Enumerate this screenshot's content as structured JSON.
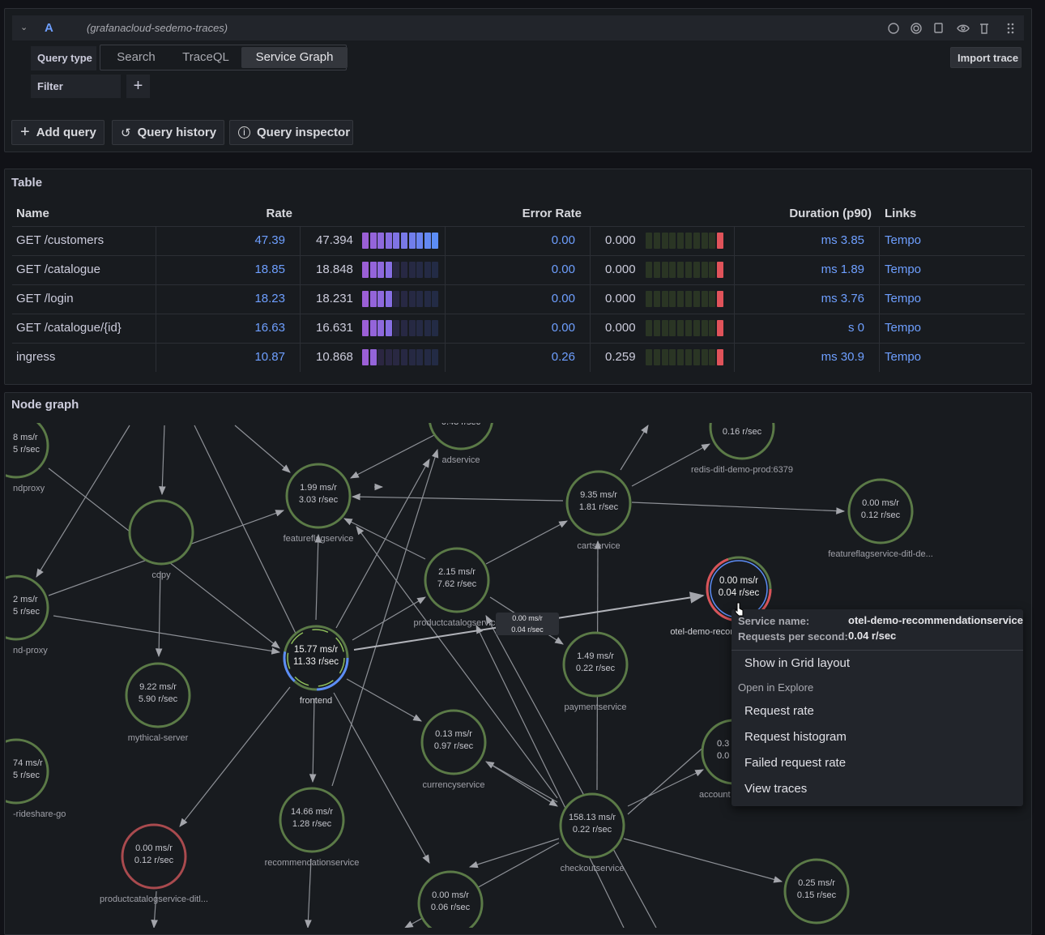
{
  "query_editor": {
    "query_letter": "A",
    "datasource": "(grafanacloud-sedemo-traces)",
    "query_type_label": "Query type",
    "tabs": [
      "Search",
      "TraceQL",
      "Service Graph"
    ],
    "active_tab": 2,
    "import_button": "Import trace",
    "filter_label": "Filter",
    "buttons": [
      "Add query",
      "Query history",
      "Query inspector"
    ]
  },
  "table": {
    "title": "Table",
    "columns": [
      "Name",
      "Rate",
      "Error Rate",
      "Duration (p90)",
      "Links"
    ],
    "rows": [
      {
        "name": "GET /customers",
        "rate": "47.39",
        "rate_gauge": "47.394",
        "error_rate": "0.00",
        "error_gauge": "0.000",
        "duration": "ms 3.85",
        "link": "Tempo"
      },
      {
        "name": "GET /catalogue",
        "rate": "18.85",
        "rate_gauge": "18.848",
        "error_rate": "0.00",
        "error_gauge": "0.000",
        "duration": "ms 1.89",
        "link": "Tempo"
      },
      {
        "name": "GET /login",
        "rate": "18.23",
        "rate_gauge": "18.231",
        "error_rate": "0.00",
        "error_gauge": "0.000",
        "duration": "ms 3.76",
        "link": "Tempo"
      },
      {
        "name": "GET /catalogue/{id}",
        "rate": "16.63",
        "rate_gauge": "16.631",
        "error_rate": "0.00",
        "error_gauge": "0.000",
        "duration": "s 0",
        "link": "Tempo"
      },
      {
        "name": "ingress",
        "rate": "10.87",
        "rate_gauge": "10.868",
        "error_rate": "0.26",
        "error_gauge": "0.259",
        "duration": "ms 30.9",
        "link": "Tempo"
      }
    ]
  },
  "node_graph": {
    "title": "Node graph",
    "nodes": [
      {
        "stats": [
          "1.99 ms/r",
          "3.03 r/sec"
        ],
        "label": "featureflagservice"
      },
      {
        "stats": [],
        "label": "copy"
      },
      {
        "stats": [
          "15.77 ms/r",
          "11.33 r/sec"
        ],
        "label": "frontend"
      },
      {
        "stats": [
          "2.15 ms/r",
          "7.62 r/sec"
        ],
        "label": "productcatalogservice"
      },
      {
        "stats": [
          "9.35 ms/r",
          "1.81 r/sec"
        ],
        "label": "cartservice"
      },
      {
        "stats": [
          "0.00 ms/r",
          "0.12 r/sec"
        ],
        "label": "featureflagservice-ditl-de..."
      },
      {
        "stats": [
          "0.00 ms/r",
          "0.04 r/sec"
        ],
        "label": "otel-demo-recommendationservice"
      },
      {
        "stats": [
          "1.49 ms/r",
          "0.22 r/sec"
        ],
        "label": "paymentservice"
      },
      {
        "stats": [
          "9.22 ms/r",
          "5.90 r/sec"
        ],
        "label": "mythical-server"
      },
      {
        "stats": [
          "0.13 ms/r",
          "0.97 r/sec"
        ],
        "label": "currencyservice"
      },
      {
        "stats": [
          "14.66 ms/r",
          "1.28 r/sec"
        ],
        "label": "recommendationservice"
      },
      {
        "stats": [
          "158.13 ms/r",
          "0.22 r/sec"
        ],
        "label": "checkoutservice"
      },
      {
        "stats": [
          "0.00 ms/r",
          "0.12 r/sec"
        ],
        "label": "productcatalogservice-ditl..."
      },
      {
        "stats": [
          "0.25 ms/r",
          "0.15 r/sec"
        ]
      },
      {
        "stats": [
          "0.00 ms/r",
          "0.06 r/sec"
        ]
      },
      {
        "stats": [
          "0.48 r/sec"
        ],
        "label": "adservice"
      },
      {
        "stats": [
          "0.16 r/sec"
        ],
        "label": "redis-ditl-demo-prod:6379"
      },
      {
        "stats": [
          "0.3",
          "0.0"
        ],
        "label": "account"
      },
      {
        "stats": [
          "8 ms/r",
          "5 r/sec"
        ],
        "label": "ndproxy"
      },
      {
        "stats": [
          "2 ms/r",
          "5 r/sec"
        ],
        "label": "nd-proxy"
      },
      {
        "stats": [
          "74 ms/r",
          "5 r/sec"
        ],
        "label": "-rideshare-go"
      }
    ],
    "edge_label": [
      "0.00 ms/r",
      "0.04 r/sec"
    ],
    "context_menu": {
      "fields": [
        {
          "key": "Service name:",
          "value": "otel-demo-recommendationservice"
        },
        {
          "key": "Requests per second:",
          "value": "0.04 r/sec"
        }
      ],
      "primary_item": "Show in Grid layout",
      "section": "Open in Explore",
      "items": [
        "Request rate",
        "Request histogram",
        "Failed request rate",
        "View traces"
      ]
    }
  }
}
